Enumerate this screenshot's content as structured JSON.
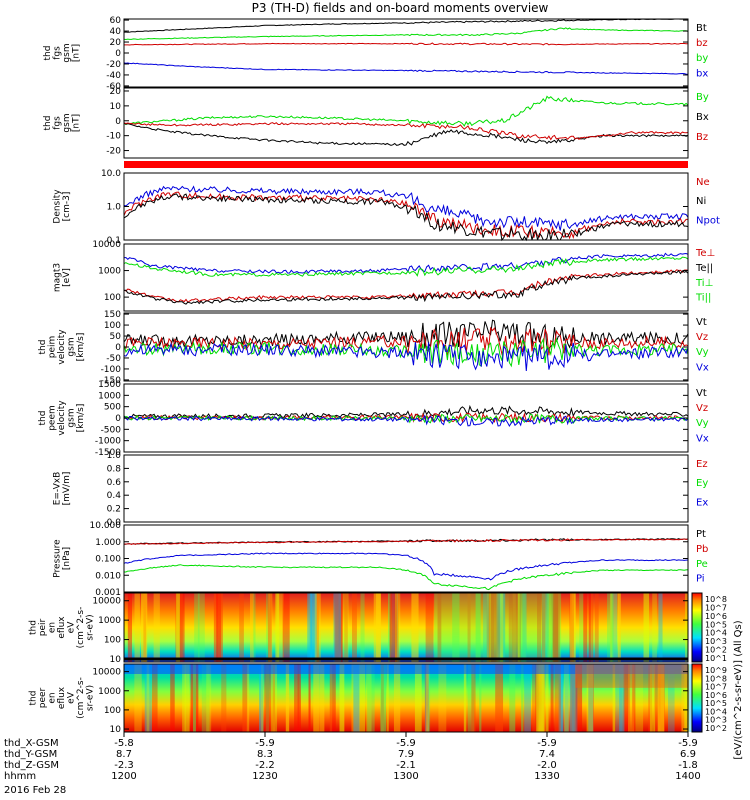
{
  "title": "P3 (TH-D) fields and on-board moments overview",
  "date_label": "2016 Feb 28",
  "colorbar_label": "[eV/(cm^2-s-sr-eV)] (All Qs)",
  "colors": {
    "black": "#000000",
    "red": "#d00000",
    "green": "#00dd00",
    "blue": "#0000dd",
    "ion_bar": "#ff0000"
  },
  "chart_data": [
    {
      "type": "line",
      "id": "fgs_gsm",
      "ylabel": [
        "thd",
        "fgs",
        "gsm",
        "[nT]"
      ],
      "yticks": [
        "60",
        "40",
        "20",
        "0",
        "-20",
        "-40",
        "-60"
      ],
      "ylim": [
        -62,
        62
      ],
      "legend": [
        "Bt",
        "bz",
        "by",
        "bx"
      ],
      "series": [
        {
          "name": "Bt",
          "color": "black",
          "x": [
            12.0,
            12.25,
            12.5,
            12.75,
            13.0,
            13.25,
            13.5,
            13.75,
            14.0
          ],
          "values": [
            38,
            44,
            50,
            53,
            55,
            57,
            59,
            61,
            62
          ]
        },
        {
          "name": "bz",
          "color": "red",
          "x": [
            12.0,
            12.5,
            13.0,
            13.5,
            14.0
          ],
          "values": [
            15,
            17,
            17,
            16,
            17
          ]
        },
        {
          "name": "by",
          "color": "green",
          "x": [
            12.0,
            12.5,
            13.0,
            13.25,
            13.4,
            13.55,
            13.7,
            14.0
          ],
          "values": [
            25,
            30,
            33,
            33,
            36,
            45,
            42,
            40
          ]
        },
        {
          "name": "bx",
          "color": "blue",
          "x": [
            12.0,
            12.25,
            12.5,
            13.0,
            13.5,
            14.0
          ],
          "values": [
            -18,
            -25,
            -30,
            -32,
            -35,
            -38
          ]
        }
      ]
    },
    {
      "type": "line",
      "id": "fgs_gsm_detail",
      "ylabel": [
        "thd",
        "fgs",
        "gsm",
        "[nT]"
      ],
      "yticks": [
        "20",
        "10",
        "0",
        "-10",
        "-20"
      ],
      "ylim": [
        -25,
        22
      ],
      "legend": [
        "By",
        "Bx",
        "Bz"
      ],
      "series": [
        {
          "name": "By",
          "color": "green",
          "x": [
            12.0,
            12.15,
            12.3,
            12.5,
            12.7,
            13.0,
            13.2,
            13.35,
            13.5,
            13.7,
            14.0
          ],
          "values": [
            -2,
            0,
            2,
            3,
            2,
            0,
            -2,
            0,
            15,
            12,
            11
          ]
        },
        {
          "name": "Bx",
          "color": "black",
          "x": [
            12.0,
            12.15,
            12.3,
            12.5,
            12.7,
            13.0,
            13.15,
            13.3,
            13.5,
            13.7,
            14.0
          ],
          "values": [
            -2,
            -7,
            -10,
            -13,
            -15,
            -16,
            -7,
            -10,
            -15,
            -10,
            -10
          ]
        },
        {
          "name": "Bz",
          "color": "red",
          "x": [
            12.0,
            12.2,
            12.5,
            12.8,
            13.0,
            13.2,
            13.4,
            13.6,
            13.8,
            14.0
          ],
          "values": [
            -2,
            -3,
            -2,
            -2,
            -3,
            -4,
            -10,
            -12,
            -8,
            -8
          ]
        }
      ]
    },
    {
      "type": "line",
      "id": "density",
      "scale": "log",
      "ylabel": [
        "Density",
        "[cm-3]"
      ],
      "yticks": [
        "10.0",
        "1.0",
        "0.1"
      ],
      "ylim": [
        0.1,
        10
      ],
      "legend": [
        "Ne",
        "Ni",
        "Npot"
      ],
      "series": [
        {
          "name": "Npot",
          "color": "blue",
          "x": [
            12.0,
            12.15,
            12.3,
            12.6,
            12.9,
            13.0,
            13.1,
            13.25,
            13.5,
            13.6,
            13.75,
            14.0
          ],
          "values": [
            0.9,
            3.5,
            3.2,
            2.8,
            2.8,
            1.8,
            0.8,
            0.4,
            0.3,
            0.3,
            0.5,
            0.5
          ]
        },
        {
          "name": "Ne",
          "color": "red",
          "x": [
            12.0,
            12.15,
            12.3,
            12.6,
            12.9,
            13.0,
            13.1,
            13.25,
            13.5,
            13.6,
            13.75,
            14.0
          ],
          "values": [
            0.6,
            2.4,
            2.0,
            1.8,
            1.6,
            1.2,
            0.4,
            0.22,
            0.15,
            0.18,
            0.35,
            0.35
          ]
        },
        {
          "name": "Ni",
          "color": "black",
          "x": [
            12.0,
            12.15,
            12.3,
            12.6,
            12.9,
            13.0,
            13.1,
            13.25,
            13.5,
            13.6,
            13.75,
            14.0
          ],
          "values": [
            0.5,
            2.0,
            1.8,
            1.5,
            1.4,
            1.0,
            0.3,
            0.17,
            0.13,
            0.15,
            0.3,
            0.3
          ]
        }
      ]
    },
    {
      "type": "line",
      "id": "temperature",
      "scale": "log",
      "ylabel": [
        "magt3",
        "[eV]"
      ],
      "yticks": [
        "10000",
        "1000",
        "100"
      ],
      "ylim": [
        30,
        10000
      ],
      "legend": [
        "Te⊥",
        "Te||",
        "Ti⊥",
        "Ti||"
      ],
      "series": [
        {
          "name": "Te⊥",
          "color": "red",
          "x": [
            12.0,
            12.1,
            12.2,
            12.5,
            12.9,
            13.1,
            13.4,
            13.6,
            13.8,
            14.0
          ],
          "values": [
            200,
            100,
            70,
            100,
            100,
            120,
            150,
            600,
            800,
            1000
          ]
        },
        {
          "name": "Te||",
          "color": "black",
          "x": [
            12.0,
            12.1,
            12.2,
            12.5,
            12.9,
            13.1,
            13.4,
            13.6,
            13.8,
            14.0
          ],
          "values": [
            170,
            90,
            60,
            80,
            90,
            100,
            130,
            500,
            700,
            900
          ]
        },
        {
          "name": "Ti⊥",
          "color": "blue",
          "x": [
            12.0,
            12.1,
            12.3,
            12.6,
            12.9,
            13.1,
            13.4,
            13.55,
            13.7,
            14.0
          ],
          "values": [
            3000,
            1500,
            1000,
            900,
            1000,
            1200,
            1500,
            2500,
            3500,
            4000
          ]
        },
        {
          "name": "Ti||",
          "color": "green",
          "x": [
            12.0,
            12.1,
            12.3,
            12.6,
            12.9,
            13.1,
            13.4,
            13.55,
            13.7,
            14.0
          ],
          "values": [
            2000,
            1200,
            700,
            700,
            800,
            900,
            1200,
            2000,
            2500,
            3000
          ]
        }
      ]
    },
    {
      "type": "line",
      "id": "ion_velocity",
      "ylabel": [
        "thd",
        "peim",
        "velocity",
        "gsm",
        "[km/s]"
      ],
      "yticks": [
        "150",
        "100",
        "50",
        "0",
        "-50",
        "-100",
        "-150"
      ],
      "ylim": [
        -155,
        155
      ],
      "legend": [
        "Vt",
        "Vz",
        "Vy",
        "Vx"
      ],
      "series": [
        {
          "name": "Vt",
          "color": "black",
          "x": [
            12.0,
            12.5,
            13.0,
            13.2,
            13.35,
            13.5,
            13.75,
            14.0
          ],
          "values": [
            30,
            30,
            50,
            60,
            70,
            45,
            40,
            40
          ]
        },
        {
          "name": "Vz",
          "color": "red",
          "x": [
            12.0,
            12.5,
            13.0,
            13.25,
            13.5,
            14.0
          ],
          "values": [
            20,
            15,
            25,
            30,
            20,
            20
          ]
        },
        {
          "name": "Vy",
          "color": "green",
          "x": [
            12.0,
            12.5,
            13.0,
            13.25,
            13.5,
            14.0
          ],
          "values": [
            -10,
            -5,
            -20,
            -40,
            -15,
            -10
          ]
        },
        {
          "name": "Vx",
          "color": "blue",
          "x": [
            12.0,
            12.5,
            13.0,
            13.3,
            13.6,
            13.8,
            14.0
          ],
          "values": [
            -15,
            -10,
            -30,
            -60,
            -40,
            -30,
            -20
          ]
        }
      ]
    },
    {
      "type": "line",
      "id": "electron_velocity",
      "ylabel": [
        "thd",
        "peem",
        "velocity",
        "gsm",
        "[km/s]"
      ],
      "yticks": [
        "1500",
        "1000",
        "500",
        "0",
        "-500",
        "-1000",
        "-1500"
      ],
      "ylim": [
        -1500,
        1500
      ],
      "legend": [
        "Vt",
        "Vz",
        "Vy",
        "Vx"
      ],
      "series": [
        {
          "name": "Vt",
          "color": "black",
          "x": [
            12.0,
            12.5,
            13.0,
            13.25,
            13.5,
            13.75,
            14.0
          ],
          "values": [
            80,
            100,
            150,
            350,
            300,
            200,
            150
          ]
        },
        {
          "name": "Vz",
          "color": "red",
          "x": [
            12.0,
            12.5,
            13.0,
            13.5,
            14.0
          ],
          "values": [
            20,
            10,
            30,
            10,
            20
          ]
        },
        {
          "name": "Vy",
          "color": "green",
          "x": [
            12.0,
            12.5,
            13.0,
            13.5,
            14.0
          ],
          "values": [
            10,
            0,
            -20,
            -30,
            -10
          ]
        },
        {
          "name": "Vx",
          "color": "blue",
          "x": [
            12.0,
            12.5,
            13.0,
            13.3,
            13.5,
            13.75,
            14.0
          ],
          "values": [
            -20,
            -30,
            -60,
            -200,
            -100,
            -80,
            -50
          ]
        }
      ]
    },
    {
      "type": "line",
      "id": "efield",
      "ylabel": [
        "E=-VxB",
        "[mV/m]"
      ],
      "yticks": [
        "1.0",
        "0.8",
        "0.6",
        "0.4",
        "0.2",
        "0.0"
      ],
      "ylim": [
        0,
        1
      ],
      "legend": [
        "Ez",
        "Ey",
        "Ex"
      ],
      "series": []
    },
    {
      "type": "line",
      "id": "pressure",
      "scale": "log",
      "ylabel": [
        "Pressure",
        "[nPa]"
      ],
      "yticks": [
        "10.000",
        "1.000",
        "0.100",
        "0.010",
        "0.001"
      ],
      "ylim": [
        0.001,
        10
      ],
      "legend": [
        "Pt",
        "Pb",
        "Pe",
        "Pi"
      ],
      "series": [
        {
          "name": "Pt",
          "color": "black",
          "x": [
            12.0,
            12.5,
            13.0,
            13.5,
            14.0
          ],
          "values": [
            0.75,
            0.95,
            1.1,
            1.3,
            1.45
          ]
        },
        {
          "name": "Pb",
          "color": "red",
          "x": [
            12.0,
            12.5,
            13.0,
            13.5,
            14.0
          ],
          "values": [
            0.72,
            0.92,
            1.05,
            1.25,
            1.4
          ]
        },
        {
          "name": "Pi",
          "color": "blue",
          "x": [
            12.0,
            12.2,
            12.5,
            12.9,
            13.0,
            13.1,
            13.3,
            13.55,
            13.7,
            14.0
          ],
          "values": [
            0.05,
            0.15,
            0.2,
            0.2,
            0.15,
            0.012,
            0.006,
            0.05,
            0.08,
            0.08
          ]
        },
        {
          "name": "Pe",
          "color": "green",
          "x": [
            12.0,
            12.2,
            12.5,
            12.9,
            13.0,
            13.1,
            13.3,
            13.55,
            13.7,
            14.0
          ],
          "values": [
            0.015,
            0.04,
            0.03,
            0.03,
            0.02,
            0.003,
            0.0015,
            0.012,
            0.02,
            0.02
          ]
        }
      ]
    },
    {
      "type": "heatmap",
      "id": "ion_spectrogram",
      "scale": "log",
      "ylabel": [
        "thd",
        "peir",
        "en",
        "eflux",
        "eV",
        "(cm^2-s-",
        "sr-eV)"
      ],
      "yticks": [
        "10000",
        "1000",
        "100",
        "10"
      ],
      "ylim": [
        7,
        25000
      ],
      "colorbar_ticks": [
        "10^8",
        "10^7",
        "10^6",
        "10^5",
        "10^4",
        "10^3",
        "10^2",
        "10^1"
      ]
    },
    {
      "type": "heatmap",
      "id": "electron_spectrogram",
      "scale": "log",
      "ylabel": [
        "thd",
        "peer",
        "en",
        "eflux",
        "eV",
        "(cm^2-s-",
        "sr-eV)"
      ],
      "yticks": [
        "10000",
        "1000",
        "100",
        "10"
      ],
      "ylim": [
        7,
        25000
      ],
      "colorbar_ticks": [
        "10^9",
        "10^8",
        "10^7",
        "10^6",
        "10^5",
        "10^4",
        "10^3",
        "10^2"
      ]
    }
  ],
  "time_axis": {
    "xlim": [
      12.0,
      14.0
    ],
    "row_labels": [
      "thd_X-GSM",
      "thd_Y-GSM",
      "thd_Z-GSM",
      "hhmm"
    ],
    "ticks": [
      {
        "t": 12.0,
        "values": [
          "-5.8",
          "8.7",
          "-2.3",
          "1200"
        ]
      },
      {
        "t": 12.5,
        "values": [
          "-5.9",
          "8.3",
          "-2.2",
          "1230"
        ]
      },
      {
        "t": 13.0,
        "values": [
          "-5.9",
          "7.9",
          "-2.1",
          "1300"
        ]
      },
      {
        "t": 13.5,
        "values": [
          "-5.9",
          "7.4",
          "-2.0",
          "1330"
        ]
      },
      {
        "t": 14.0,
        "values": [
          "-5.9",
          "6.9",
          "-1.8",
          "1400"
        ]
      }
    ]
  }
}
